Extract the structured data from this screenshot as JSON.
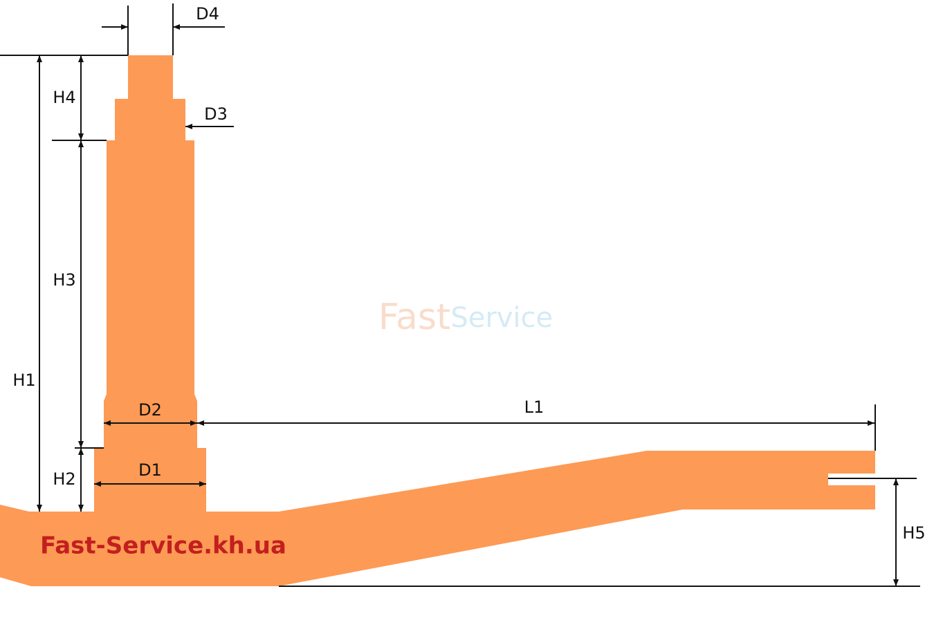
{
  "dimensions": {
    "D4": "D4",
    "D3": "D3",
    "H4": "H4",
    "H3": "H3",
    "H1": "H1",
    "H2": "H2",
    "D2": "D2",
    "D1": "D1",
    "L1": "L1",
    "H5": "H5"
  },
  "watermark": {
    "part1": "Fast",
    "part2": "Service"
  },
  "website": "Fast-Service.kh.ua"
}
